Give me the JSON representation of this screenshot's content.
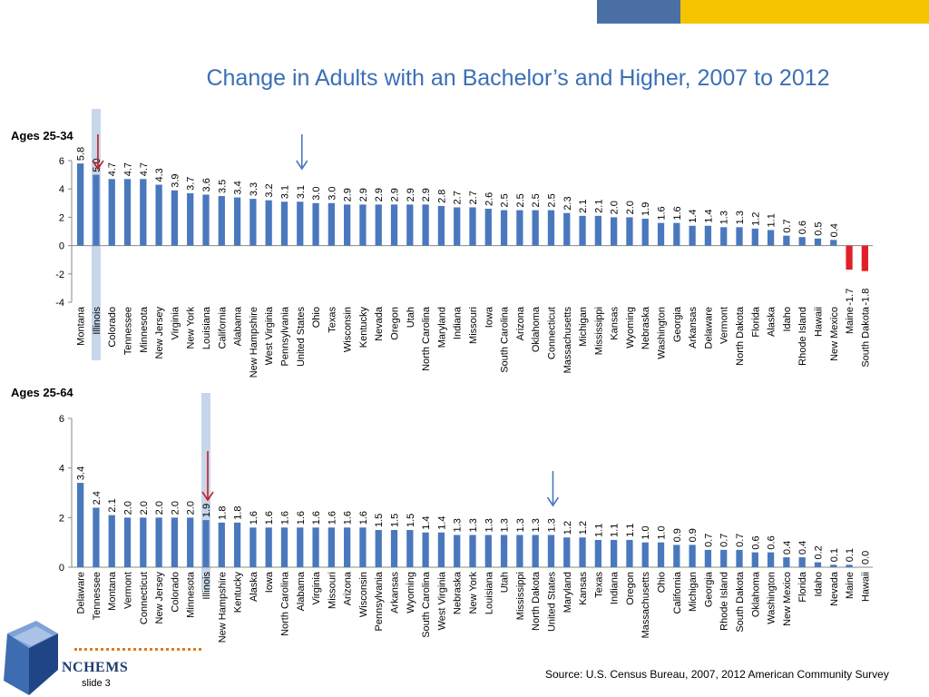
{
  "title": "Change in Adults with an Bachelor’s and Higher, 2007 to 2012",
  "source": "Source:  U.S. Census Bureau, 2007, 2012 American Community Survey",
  "logo": "NCHEMS",
  "slide": "slide 3",
  "colors": {
    "bar": "#4a78bd",
    "negative_bar": "#e0202a",
    "highlight": "#c7d6ea",
    "arrow_red": "#c0202a",
    "arrow_blue": "#4a78bd",
    "title": "#3b6fb6"
  },
  "chart_data": [
    {
      "type": "bar",
      "panel_label": "Ages 25-34",
      "ylim": [
        -4,
        6
      ],
      "yticks": [
        6,
        4,
        2,
        0,
        -2,
        -4
      ],
      "highlight_category": "Illinois",
      "red_arrow_category": "Illinois",
      "blue_arrow_category": "United States",
      "categories": [
        "Montana",
        "Illinois",
        "Colorado",
        "Tennessee",
        "Minnesota",
        "New Jersey",
        "Virginia",
        "New York",
        "Louisiana",
        "California",
        "Alabama",
        "New Hampshire",
        "West Virginia",
        "Pennsylvania",
        "United States",
        "Ohio",
        "Texas",
        "Wisconsin",
        "Kentucky",
        "Nevada",
        "Oregon",
        "Utah",
        "North Carolina",
        "Maryland",
        "Indiana",
        "Missouri",
        "Iowa",
        "South Carolina",
        "Arizona",
        "Oklahoma",
        "Connecticut",
        "Massachusetts",
        "Michigan",
        "Mississippi",
        "Kansas",
        "Wyoming",
        "Nebraska",
        "Washington",
        "Georgia",
        "Arkansas",
        "Delaware",
        "Vermont",
        "North Dakota",
        "Florida",
        "Alaska",
        "Idaho",
        "Rhode Island",
        "Hawaii",
        "New Mexico",
        "Maine",
        "South Dakota"
      ],
      "values": [
        5.8,
        5.0,
        4.7,
        4.7,
        4.7,
        4.3,
        3.9,
        3.7,
        3.6,
        3.5,
        3.4,
        3.3,
        3.2,
        3.1,
        3.1,
        3.0,
        3.0,
        2.9,
        2.9,
        2.9,
        2.9,
        2.9,
        2.9,
        2.8,
        2.7,
        2.7,
        2.6,
        2.5,
        2.5,
        2.5,
        2.5,
        2.3,
        2.1,
        2.1,
        2.0,
        2.0,
        1.9,
        1.6,
        1.6,
        1.4,
        1.4,
        1.3,
        1.3,
        1.2,
        1.1,
        0.7,
        0.6,
        0.5,
        0.4,
        -1.7,
        -1.8
      ],
      "labels": [
        "5.8",
        "5.0",
        "4.7",
        "4.7",
        "4.7",
        "4.3",
        "3.9",
        "3.7",
        "3.6",
        "3.5",
        "3.4",
        "3.3",
        "3.2",
        "3.1",
        "3.1",
        "3.0",
        "3.0",
        "2.9",
        "2.9",
        "2.9",
        "2.9",
        "2.9",
        "2.9",
        "2.8",
        "2.7",
        "2.7",
        "2.6",
        "2.5",
        "2.5",
        "2.5",
        "2.5",
        "2.3",
        "2.1",
        "2.1",
        "2.0",
        "2.0",
        "1.9",
        "1.6",
        "1.6",
        "1.4",
        "1.4",
        "1.3",
        "1.3",
        "1.2",
        "1.1",
        "0.7",
        "0.6",
        "0.5",
        "0.4",
        "-1.7",
        "-1.8"
      ]
    },
    {
      "type": "bar",
      "panel_label": "Ages 25-64",
      "ylim": [
        0,
        6
      ],
      "yticks": [
        6,
        4,
        2,
        0
      ],
      "highlight_category": "Illinois",
      "red_arrow_category": "Illinois",
      "blue_arrow_category": "United States",
      "categories": [
        "Delaware",
        "Tennessee",
        "Montana",
        "Vermont",
        "Connecticut",
        "New Jersey",
        "Colorado",
        "Minnesota",
        "Illinois",
        "New Hampshire",
        "Kentucky",
        "Alaska",
        "Iowa",
        "North Carolina",
        "Alabama",
        "Virginia",
        "Missouri",
        "Arizona",
        "Wisconsin",
        "Pennsylvania",
        "Arkansas",
        "Wyoming",
        "South Carolina",
        "West Virginia",
        "Nebraska",
        "New York",
        "Louisiana",
        "Utah",
        "Mississippi",
        "North Dakota",
        "United States",
        "Maryland",
        "Kansas",
        "Texas",
        "Indiana",
        "Oregon",
        "Massachusetts",
        "Ohio",
        "California",
        "Michigan",
        "Georgia",
        "Rhode Island",
        "South Dakota",
        "Oklahoma",
        "Washington",
        "New Mexico",
        "Florida",
        "Idaho",
        "Nevada",
        "Maine",
        "Hawaii"
      ],
      "values": [
        3.4,
        2.4,
        2.1,
        2.0,
        2.0,
        2.0,
        2.0,
        2.0,
        1.9,
        1.8,
        1.8,
        1.6,
        1.6,
        1.6,
        1.6,
        1.6,
        1.6,
        1.6,
        1.6,
        1.5,
        1.5,
        1.5,
        1.4,
        1.4,
        1.3,
        1.3,
        1.3,
        1.3,
        1.3,
        1.3,
        1.3,
        1.2,
        1.2,
        1.1,
        1.1,
        1.1,
        1.0,
        1.0,
        0.9,
        0.9,
        0.7,
        0.7,
        0.7,
        0.6,
        0.6,
        0.4,
        0.4,
        0.2,
        0.1,
        0.1,
        0.0
      ],
      "labels": [
        "3.4",
        "2.4",
        "2.1",
        "2.0",
        "2.0",
        "2.0",
        "2.0",
        "2.0",
        "1.9",
        "1.8",
        "1.8",
        "1.6",
        "1.6",
        "1.6",
        "1.6",
        "1.6",
        "1.6",
        "1.6",
        "1.6",
        "1.5",
        "1.5",
        "1.5",
        "1.4",
        "1.4",
        "1.3",
        "1.3",
        "1.3",
        "1.3",
        "1.3",
        "1.3",
        "1.3",
        "1.2",
        "1.2",
        "1.1",
        "1.1",
        "1.1",
        "1.0",
        "1.0",
        "0.9",
        "0.9",
        "0.7",
        "0.7",
        "0.7",
        "0.6",
        "0.6",
        "0.4",
        "0.4",
        "0.2",
        "0.1",
        "0.1",
        "0.0"
      ]
    }
  ]
}
